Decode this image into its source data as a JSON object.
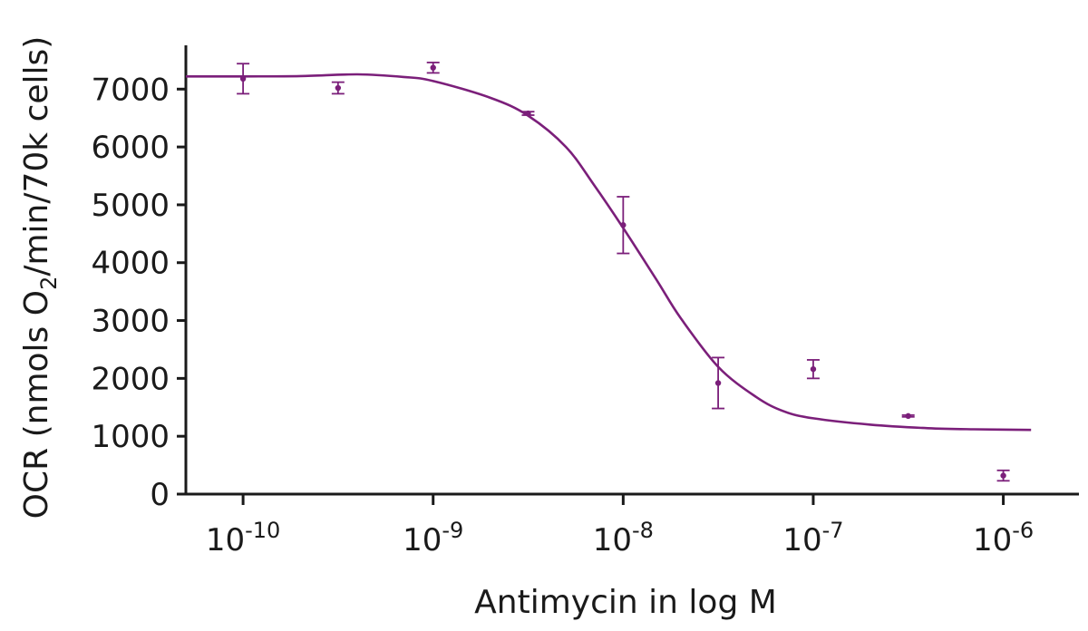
{
  "chart_data": {
    "type": "scatter",
    "xlabel": "Antimycin in log M",
    "ylabel_parts": {
      "before": "OCR (nmols O",
      "subscript": "2",
      "after": "/min/70k cells)"
    },
    "x_scale": "log",
    "x_ticks": [
      {
        "value": 1e-10,
        "base": "10",
        "exp": "-10"
      },
      {
        "value": 1e-09,
        "base": "10",
        "exp": "-9"
      },
      {
        "value": 1e-08,
        "base": "10",
        "exp": "-8"
      },
      {
        "value": 1e-07,
        "base": "10",
        "exp": "-7"
      },
      {
        "value": 1e-06,
        "base": "10",
        "exp": "-6"
      }
    ],
    "xlim": [
      5e-11,
      2.5e-06
    ],
    "y_ticks": [
      "0",
      "1000",
      "2000",
      "3000",
      "4000",
      "5000",
      "6000",
      "7000"
    ],
    "ylim": [
      0,
      7600
    ],
    "grid": false,
    "color": "#7b1f7a",
    "points": [
      {
        "x": 1e-10,
        "y": 7180,
        "err": 260
      },
      {
        "x": 3.16e-10,
        "y": 7020,
        "err": 100
      },
      {
        "x": 1e-09,
        "y": 7370,
        "err": 90
      },
      {
        "x": 3.16e-09,
        "y": 6580,
        "err": 30
      },
      {
        "x": 1e-08,
        "y": 4650,
        "err": 490
      },
      {
        "x": 3.16e-08,
        "y": 1920,
        "err": 440
      },
      {
        "x": 1e-07,
        "y": 2160,
        "err": 160
      },
      {
        "x": 3.16e-07,
        "y": 1350,
        "err": 15
      },
      {
        "x": 1e-06,
        "y": 320,
        "err": 90
      }
    ],
    "fit_curve": {
      "type": "sigmoid",
      "x_range": [
        5e-11,
        1.4e-06
      ],
      "points": [
        [
          5e-11,
          7220
        ],
        [
          1e-10,
          7220
        ],
        [
          2e-10,
          7225
        ],
        [
          4e-10,
          7255
        ],
        [
          7e-10,
          7210
        ],
        [
          1e-09,
          7140
        ],
        [
          2e-09,
          6850
        ],
        [
          3.16e-09,
          6540
        ],
        [
          5e-09,
          6000
        ],
        [
          7e-09,
          5350
        ],
        [
          1e-08,
          4600
        ],
        [
          1.5e-08,
          3700
        ],
        [
          2e-08,
          3050
        ],
        [
          3.16e-08,
          2200
        ],
        [
          5e-08,
          1680
        ],
        [
          7e-08,
          1430
        ],
        [
          1e-07,
          1310
        ],
        [
          2e-07,
          1200
        ],
        [
          4e-07,
          1140
        ],
        [
          7e-07,
          1120
        ],
        [
          1.4e-06,
          1110
        ]
      ]
    }
  }
}
